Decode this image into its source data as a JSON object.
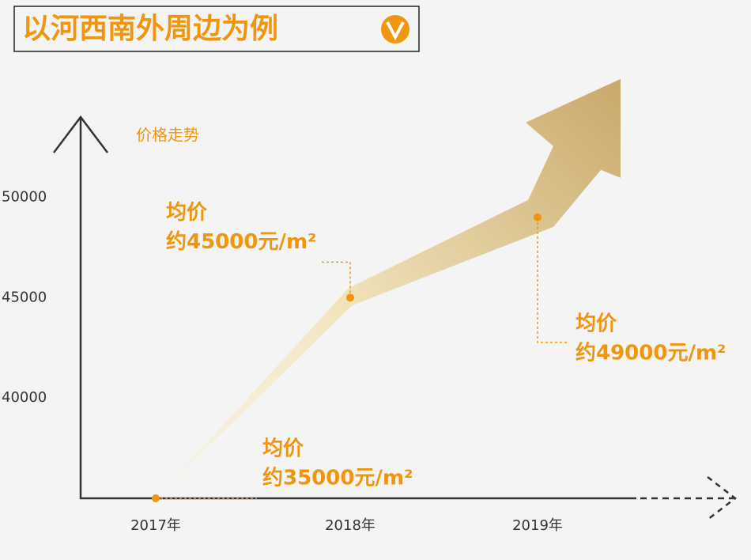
{
  "chart_data": {
    "type": "line",
    "title": "以河西南外周边为例",
    "y_label": "价格走势",
    "categories": [
      "2017年",
      "2018年",
      "2019年"
    ],
    "values": [
      35000,
      45000,
      49000
    ],
    "value_labels": [
      "约35000元/m²",
      "约45000元/m²",
      "约49000元/m²"
    ],
    "value_label_titles": [
      "均价",
      "均价",
      "均价"
    ],
    "color": "#f0960e",
    "ylim": [
      35000,
      54000
    ],
    "yticks": [
      40000,
      45000,
      50000
    ],
    "grid": false
  }
}
